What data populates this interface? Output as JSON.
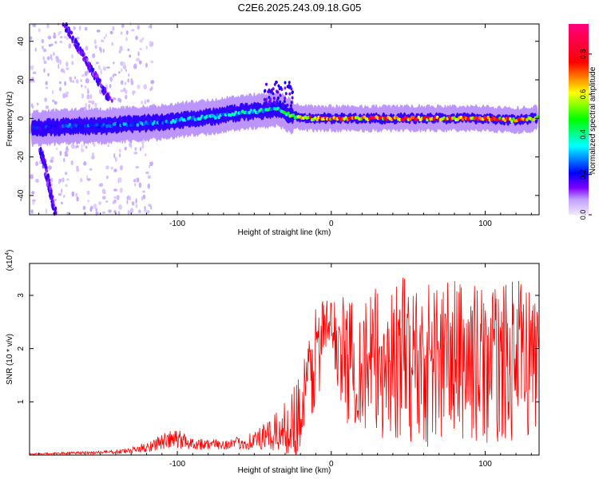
{
  "figure_title": "C2E6.2025.243.09.18.G05",
  "chart_data": [
    {
      "type": "heatmap",
      "title": "",
      "xlabel": "Height of straight line (km)",
      "ylabel": "Frequency (Hz)",
      "xlim": [
        -196,
        135
      ],
      "ylim": [
        -50,
        49
      ],
      "x_ticks": [
        -100,
        0,
        100
      ],
      "y_ticks": [
        -40,
        -20,
        0,
        20,
        40
      ],
      "grid": false,
      "colorbar": {
        "label": "Normalized spectral amplitude",
        "range": [
          0,
          0.95
        ],
        "ticks": [
          0.0,
          0.2,
          0.4,
          0.6,
          0.8
        ],
        "colormap": [
          "#e8d8f8",
          "#8000ff",
          "#0000ff",
          "#00ffff",
          "#00ff00",
          "#ffff00",
          "#ff0000",
          "#ff0080"
        ]
      },
      "series": [
        {
          "points": [
            [
              -190,
              -5
            ],
            [
              -170,
              -4
            ],
            [
              -150,
              -4
            ],
            [
              -130,
              -3
            ],
            [
              -110,
              -2
            ],
            [
              -90,
              0
            ],
            [
              -75,
              1
            ],
            [
              -60,
              3
            ],
            [
              -45,
              4
            ],
            [
              -35,
              5
            ],
            [
              -25,
              1
            ],
            [
              -15,
              0
            ],
            [
              0,
              0
            ],
            [
              20,
              0
            ],
            [
              40,
              0
            ],
            [
              60,
              0
            ],
            [
              80,
              0
            ],
            [
              100,
              0
            ],
            [
              120,
              -1
            ],
            [
              132,
              0
            ]
          ],
          "peak_amplitude": [
            0.25,
            0.3,
            0.3,
            0.32,
            0.35,
            0.4,
            0.42,
            0.42,
            0.45,
            0.45,
            0.6,
            0.75,
            0.85,
            0.9,
            0.9,
            0.92,
            0.92,
            0.9,
            0.85,
            0.8
          ]
        }
      ]
    },
    {
      "type": "line",
      "title": "",
      "xlabel": "Height of straight line (km)",
      "ylabel": "SNR (10 * v/v)",
      "y_multiplier": "(x10^4)",
      "y_multiplier_base": "(x10",
      "y_multiplier_exp": "4",
      "y_multiplier_close": ")",
      "xlim": [
        -196,
        135
      ],
      "ylim": [
        0,
        3.6
      ],
      "x_ticks": [
        -100,
        0,
        100
      ],
      "y_ticks": [
        1,
        2,
        3
      ],
      "grid": false,
      "series": [
        {
          "color": "#ff0000",
          "x": [
            -196,
            -180,
            -160,
            -140,
            -130,
            -120,
            -110,
            -100,
            -90,
            -80,
            -70,
            -60,
            -50,
            -40,
            -30,
            -20,
            -15,
            -10,
            -5,
            0,
            5,
            10,
            20,
            30,
            40,
            50,
            60,
            70,
            80,
            90,
            100,
            110,
            120,
            130,
            135
          ],
          "y_mean": [
            0.02,
            0.03,
            0.04,
            0.06,
            0.08,
            0.15,
            0.25,
            0.3,
            0.22,
            0.2,
            0.2,
            0.22,
            0.28,
            0.35,
            0.5,
            0.8,
            1.3,
            1.9,
            2.3,
            2.5,
            2.0,
            1.8,
            1.7,
            1.7,
            1.75,
            1.8,
            1.7,
            1.8,
            1.8,
            1.75,
            1.7,
            1.7,
            1.8,
            1.8,
            1.8
          ],
          "y_amplitude": [
            0.01,
            0.02,
            0.03,
            0.04,
            0.06,
            0.1,
            0.15,
            0.2,
            0.12,
            0.1,
            0.1,
            0.12,
            0.2,
            0.3,
            0.5,
            0.8,
            1.0,
            1.1,
            0.7,
            0.4,
            1.0,
            1.2,
            1.3,
            1.5,
            1.5,
            1.6,
            1.6,
            1.6,
            1.6,
            1.5,
            1.5,
            1.5,
            1.5,
            1.5,
            1.4
          ]
        }
      ]
    }
  ]
}
